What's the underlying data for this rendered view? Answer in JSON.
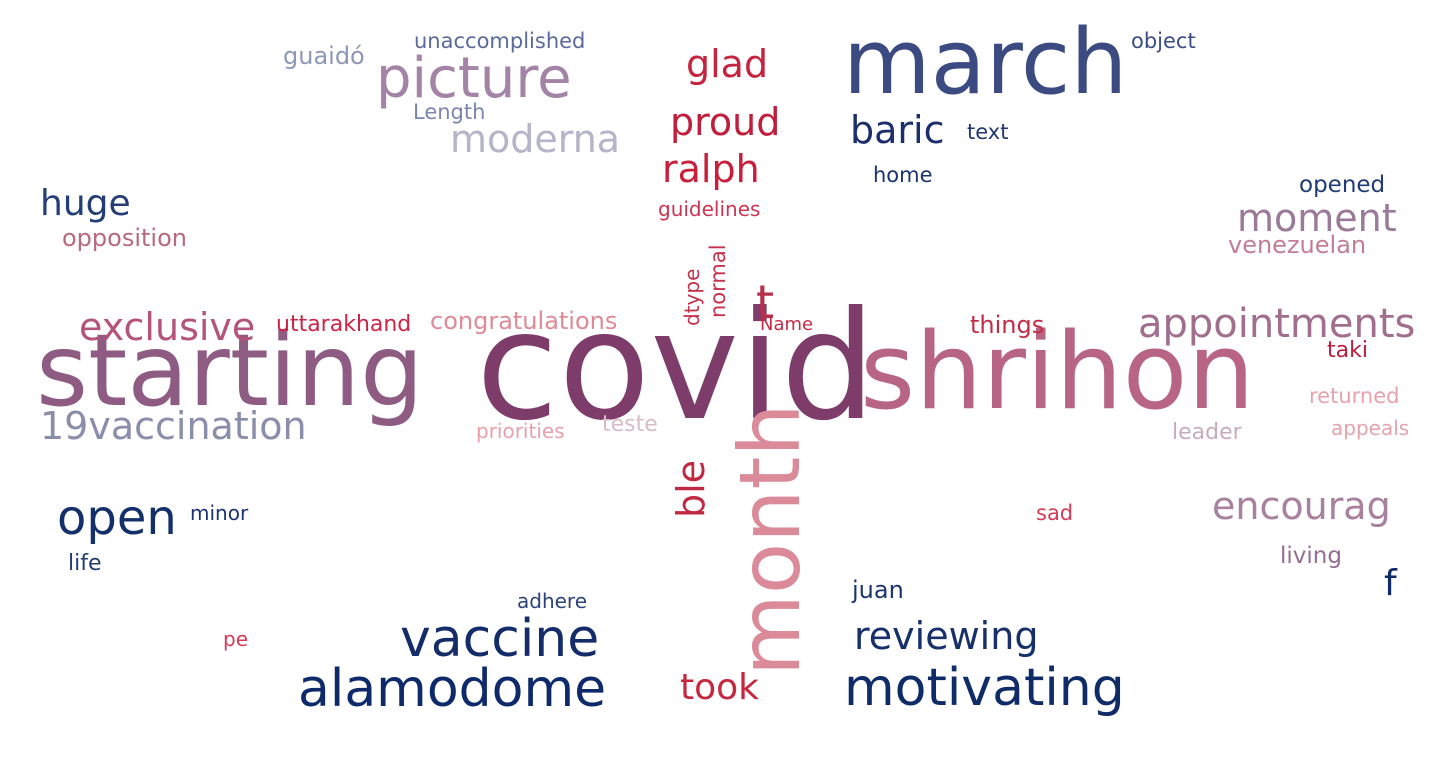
{
  "words": [
    {
      "text": "covid",
      "color": "#7d3c6a"
    },
    {
      "text": "shrihon",
      "color": "#b86484"
    },
    {
      "text": "starting",
      "color": "#8e5b83"
    },
    {
      "text": "march",
      "color": "#3b4a81"
    },
    {
      "text": "month",
      "color": "#db8a9a"
    },
    {
      "text": "picture",
      "color": "#a384a6"
    },
    {
      "text": "vaccine",
      "color": "#142d6a"
    },
    {
      "text": "alamodome",
      "color": "#0e2a6a"
    },
    {
      "text": "motivating",
      "color": "#0f2c69"
    },
    {
      "text": "open",
      "color": "#14306b"
    },
    {
      "text": "appointments",
      "color": "#a16f8d"
    },
    {
      "text": "19vaccination",
      "color": "#8a8eab"
    },
    {
      "text": "exclusive",
      "color": "#b5547a"
    },
    {
      "text": "encourag",
      "color": "#a7819d"
    },
    {
      "text": "reviewing",
      "color": "#17306a"
    },
    {
      "text": "moderna",
      "color": "#b5b4c9"
    },
    {
      "text": "moment",
      "color": "#9a7a98"
    },
    {
      "text": "glad",
      "color": "#c4243e"
    },
    {
      "text": "proud",
      "color": "#c11e3c"
    },
    {
      "text": "ralph",
      "color": "#c8203c"
    },
    {
      "text": "baric",
      "color": "#1c2f6b"
    },
    {
      "text": "huge",
      "color": "#243e78"
    },
    {
      "text": "took",
      "color": "#c7263e"
    },
    {
      "text": "t",
      "color": "#b62f4b"
    },
    {
      "text": "ble",
      "color": "#c12842"
    },
    {
      "text": "f",
      "color": "#0f2a68"
    },
    {
      "text": "opposition",
      "color": "#b7697f"
    },
    {
      "text": "venezuelan",
      "color": "#c27f93"
    },
    {
      "text": "congratulations",
      "color": "#e08a98"
    },
    {
      "text": "uttarakhand",
      "color": "#cc2446"
    },
    {
      "text": "things",
      "color": "#c42c46"
    },
    {
      "text": "guaidó",
      "color": "#8d97b8"
    },
    {
      "text": "unaccomplished",
      "color": "#5b6a9a"
    },
    {
      "text": "Length",
      "color": "#7b86ad"
    },
    {
      "text": "object",
      "color": "#3b4d85"
    },
    {
      "text": "text",
      "color": "#22386f"
    },
    {
      "text": "home",
      "color": "#1c3370"
    },
    {
      "text": "opened",
      "color": "#203a74"
    },
    {
      "text": "guidelines",
      "color": "#cf3552"
    },
    {
      "text": "normal",
      "color": "#c7334d"
    },
    {
      "text": "dtype",
      "color": "#c2304b"
    },
    {
      "text": "Name",
      "color": "#c62c47"
    },
    {
      "text": "taki",
      "color": "#b92040"
    },
    {
      "text": "returned",
      "color": "#e8a2ac"
    },
    {
      "text": "appeals",
      "color": "#e3a3ad"
    },
    {
      "text": "leader",
      "color": "#c9acbc"
    },
    {
      "text": "priorities",
      "color": "#e8a0ab"
    },
    {
      "text": "teste",
      "color": "#d7bcc8"
    },
    {
      "text": "minor",
      "color": "#1d3370"
    },
    {
      "text": "life",
      "color": "#233c75"
    },
    {
      "text": "sad",
      "color": "#d53c58"
    },
    {
      "text": "living",
      "color": "#936d94"
    },
    {
      "text": "juan",
      "color": "#1c356f"
    },
    {
      "text": "adhere",
      "color": "#2d437b"
    },
    {
      "text": "pe",
      "color": "#d63956"
    }
  ]
}
